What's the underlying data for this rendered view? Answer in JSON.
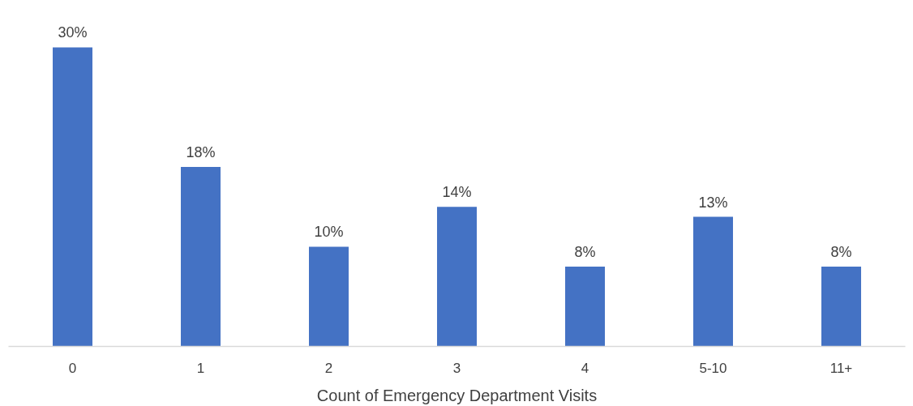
{
  "chart_data": {
    "type": "bar",
    "xlabel": "Count of Emergency Department Visits",
    "categories": [
      "0",
      "1",
      "2",
      "3",
      "4",
      "5-10",
      "11+"
    ],
    "values": [
      30,
      18,
      10,
      14,
      8,
      13,
      8
    ],
    "value_labels": [
      "30%",
      "18%",
      "10%",
      "14%",
      "8%",
      "13%",
      "8%"
    ],
    "color": "#4472c4",
    "grid": false
  }
}
